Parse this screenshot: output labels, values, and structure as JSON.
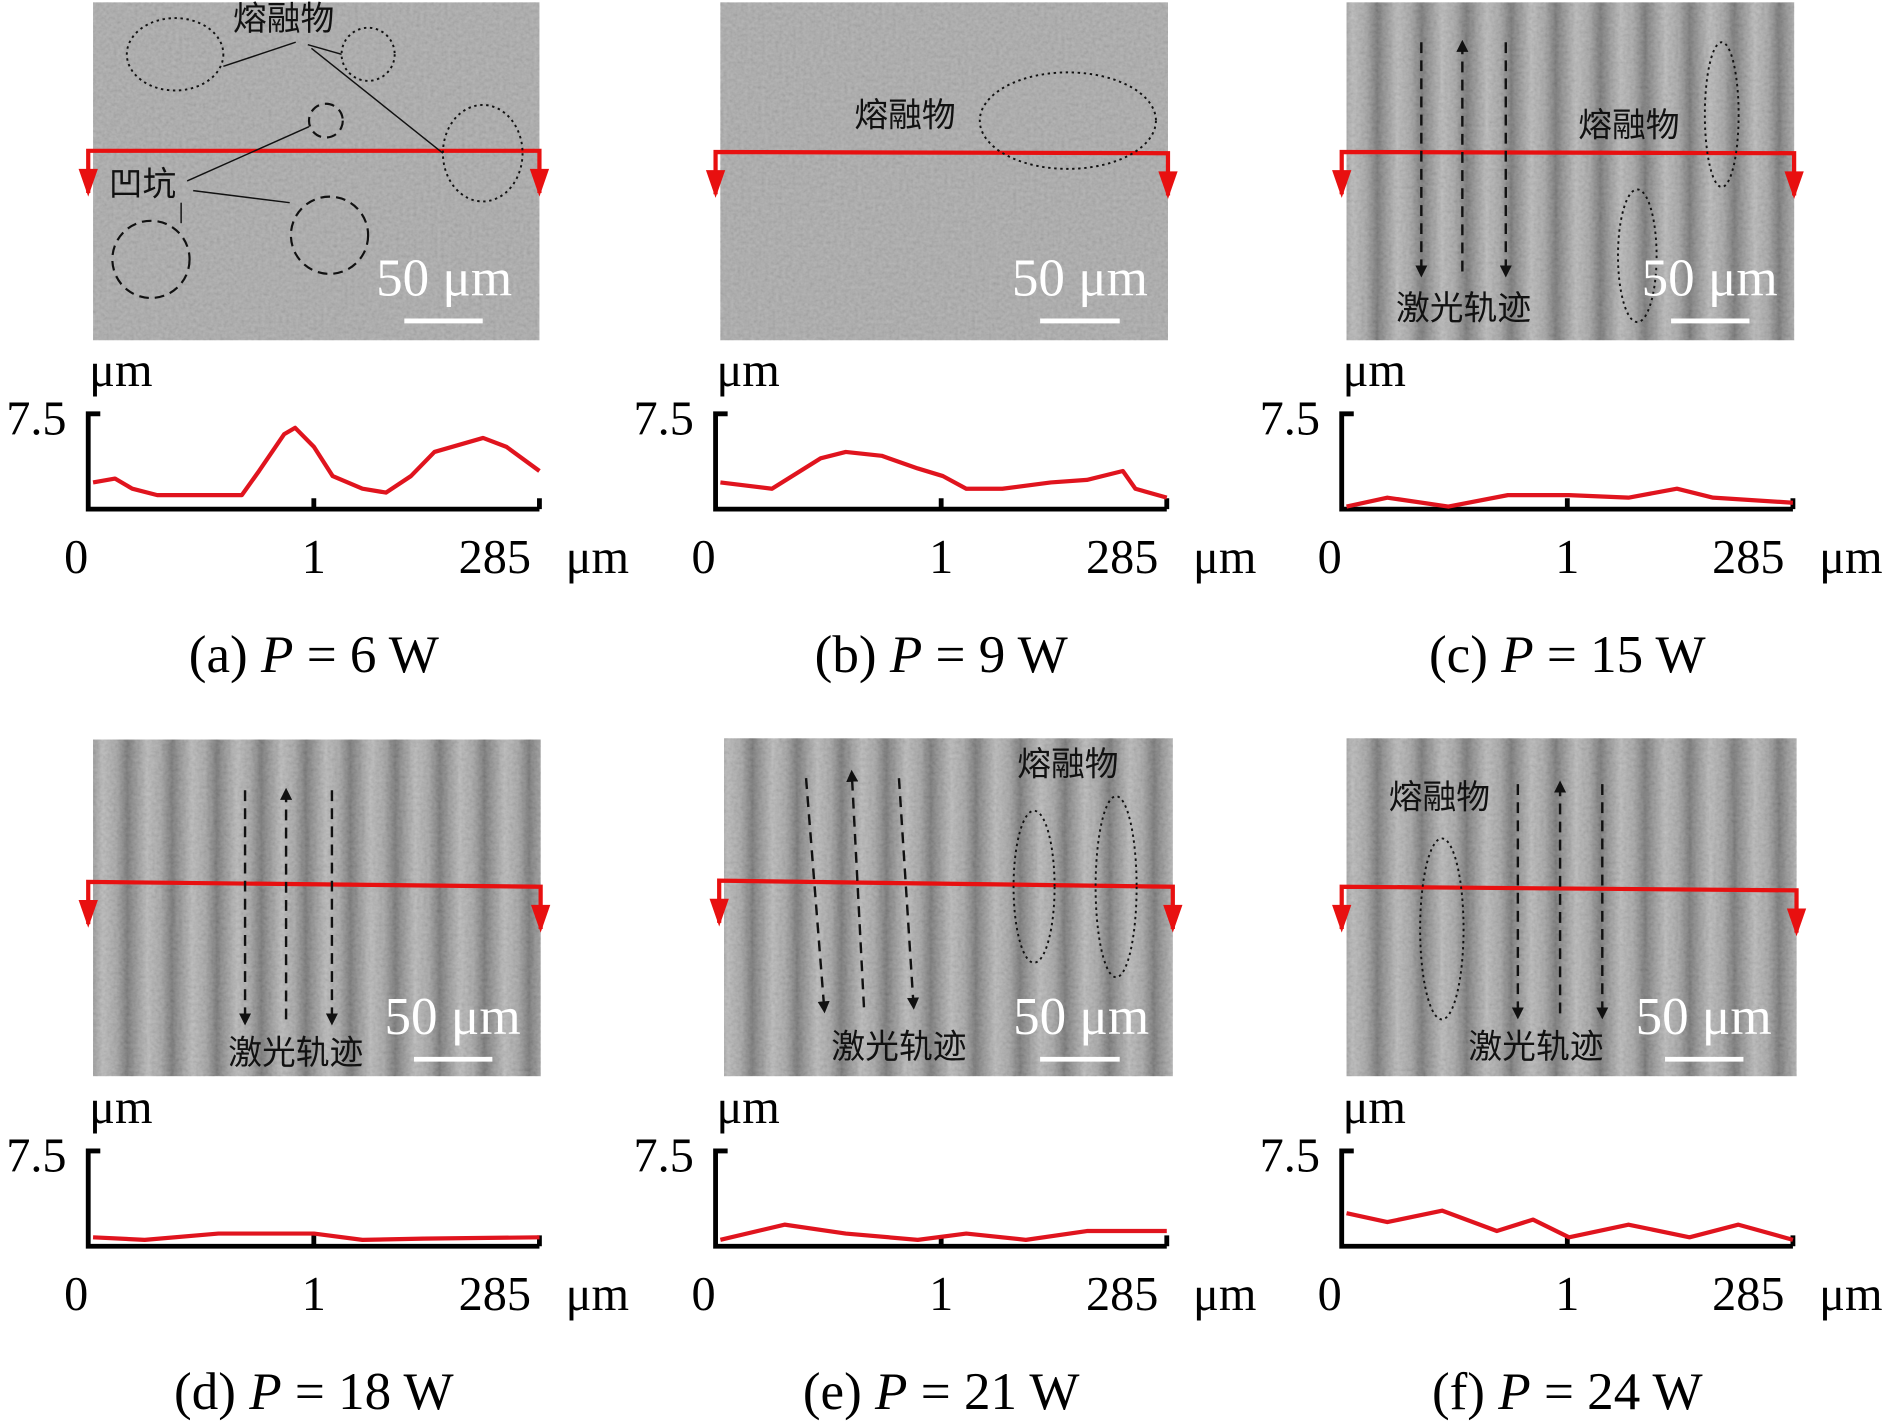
{
  "colors": {
    "profile": "#e0141e",
    "scan_line": "#e81010",
    "axis": "#000000",
    "scale_bar": "#ffffff"
  },
  "common": {
    "y_unit": "μm",
    "y_max_label": "7.5",
    "x_ticks": [
      "0",
      "1",
      "285"
    ],
    "x_unit": "μm",
    "scale_bar": "50 μm",
    "molten_label": "熔融物",
    "pit_label": "凹坑",
    "track_label": "激光轨迹"
  },
  "panels": [
    {
      "id": "a",
      "label": "(a)",
      "var": "P",
      "value": "= 6 W",
      "annotations": [
        "molten",
        "pit"
      ],
      "profile": [
        [
          0,
          2.1
        ],
        [
          14,
          2.4
        ],
        [
          25,
          1.6
        ],
        [
          41,
          1.1
        ],
        [
          75,
          1.1
        ],
        [
          95,
          1.1
        ],
        [
          106,
          3.0
        ],
        [
          122,
          5.9
        ],
        [
          129,
          6.4
        ],
        [
          141,
          4.9
        ],
        [
          153,
          2.6
        ],
        [
          172,
          1.6
        ],
        [
          187,
          1.3
        ],
        [
          203,
          2.6
        ],
        [
          218,
          4.5
        ],
        [
          249,
          5.6
        ],
        [
          264,
          4.9
        ],
        [
          285,
          3.0
        ]
      ]
    },
    {
      "id": "b",
      "label": "(b)",
      "var": "P",
      "value": "= 9 W",
      "annotations": [
        "molten"
      ],
      "profile": [
        [
          0,
          2.1
        ],
        [
          33,
          1.6
        ],
        [
          64,
          4.0
        ],
        [
          80,
          4.5
        ],
        [
          103,
          4.2
        ],
        [
          126,
          3.2
        ],
        [
          142,
          2.6
        ],
        [
          157,
          1.6
        ],
        [
          180,
          1.6
        ],
        [
          211,
          2.1
        ],
        [
          234,
          2.3
        ],
        [
          257,
          3.0
        ],
        [
          265,
          1.6
        ],
        [
          285,
          0.9
        ]
      ]
    },
    {
      "id": "c",
      "label": "(c)",
      "var": "P",
      "value": "= 15 W",
      "annotations": [
        "track",
        "molten"
      ],
      "profile": [
        [
          0,
          0.2
        ],
        [
          26,
          0.9
        ],
        [
          65,
          0.2
        ],
        [
          103,
          1.1
        ],
        [
          142,
          1.1
        ],
        [
          180,
          0.9
        ],
        [
          211,
          1.6
        ],
        [
          234,
          0.9
        ],
        [
          285,
          0.5
        ]
      ]
    },
    {
      "id": "d",
      "label": "(d)",
      "var": "P",
      "value": "= 18 W",
      "annotations": [
        "track"
      ],
      "profile": [
        [
          0,
          0.7
        ],
        [
          33,
          0.5
        ],
        [
          80,
          1.0
        ],
        [
          141,
          1.0
        ],
        [
          172,
          0.5
        ],
        [
          211,
          0.6
        ],
        [
          285,
          0.7
        ]
      ]
    },
    {
      "id": "e",
      "label": "(e)",
      "var": "P",
      "value": "= 21 W",
      "annotations": [
        "track",
        "molten"
      ],
      "profile": [
        [
          0,
          0.5
        ],
        [
          41,
          1.7
        ],
        [
          80,
          1.0
        ],
        [
          126,
          0.5
        ],
        [
          157,
          1.0
        ],
        [
          195,
          0.5
        ],
        [
          234,
          1.2
        ],
        [
          285,
          1.2
        ]
      ]
    },
    {
      "id": "f",
      "label": "(f)",
      "var": "P",
      "value": "= 24 W",
      "annotations": [
        "molten",
        "track"
      ],
      "profile": [
        [
          0,
          2.6
        ],
        [
          26,
          1.9
        ],
        [
          61,
          2.8
        ],
        [
          96,
          1.2
        ],
        [
          119,
          2.1
        ],
        [
          142,
          0.7
        ],
        [
          180,
          1.7
        ],
        [
          219,
          0.7
        ],
        [
          250,
          1.7
        ],
        [
          285,
          0.5
        ]
      ]
    }
  ],
  "chart_data": {
    "type": "line",
    "xlabel": "μm",
    "ylabel": "μm",
    "xlim": [
      0,
      285
    ],
    "ylim": [
      0,
      7.5
    ],
    "note": "surface height profiles along scan line for panels a–f (see panels[].profile as [x, z])"
  }
}
